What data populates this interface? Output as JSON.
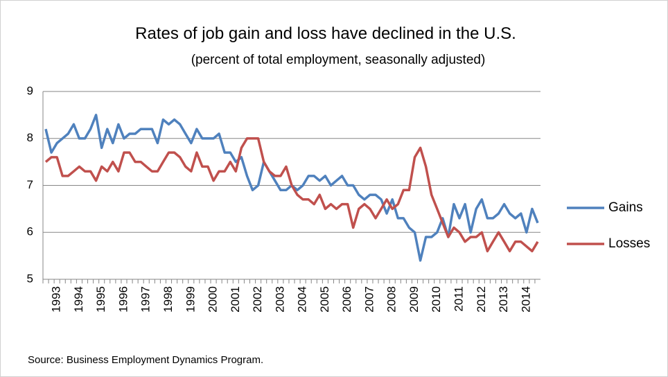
{
  "chart_data": {
    "type": "line",
    "title": "Rates of job gain and loss have declined in the U.S.",
    "subtitle": "(percent of total employment, seasonally adjusted)",
    "source": "Source: Business Employment Dynamics Program.",
    "categories": [
      null,
      null,
      "1993",
      null,
      null,
      null,
      "1994",
      null,
      null,
      null,
      "1995",
      null,
      null,
      null,
      "1996",
      null,
      null,
      null,
      "1997",
      null,
      null,
      null,
      "1998",
      null,
      null,
      null,
      "1999",
      null,
      null,
      null,
      "2000",
      null,
      null,
      null,
      "2001",
      null,
      null,
      null,
      "2002",
      null,
      null,
      null,
      "2003",
      null,
      null,
      null,
      "2004",
      null,
      null,
      null,
      "2005",
      null,
      null,
      null,
      "2006",
      null,
      null,
      null,
      "2007",
      null,
      null,
      null,
      "2008",
      null,
      null,
      null,
      "2009",
      null,
      null,
      null,
      "2010",
      null,
      null,
      null,
      "2011",
      null,
      null,
      null,
      "2012",
      null,
      null,
      null,
      "2013",
      null,
      null,
      null,
      "2014",
      null,
      null
    ],
    "series": [
      {
        "name": "Gains",
        "color": "#4f81bd",
        "values": [
          8.2,
          7.7,
          7.9,
          8.0,
          8.1,
          8.3,
          8.0,
          8.0,
          8.2,
          8.5,
          7.8,
          8.2,
          7.9,
          8.3,
          8.0,
          8.1,
          8.1,
          8.2,
          8.2,
          8.2,
          7.9,
          8.4,
          8.3,
          8.4,
          8.3,
          8.1,
          7.9,
          8.2,
          8.0,
          8.0,
          8.0,
          8.1,
          7.7,
          7.7,
          7.5,
          7.6,
          7.2,
          6.9,
          7.0,
          7.5,
          7.3,
          7.1,
          6.9,
          6.9,
          7.0,
          6.9,
          7.0,
          7.2,
          7.2,
          7.1,
          7.2,
          7.0,
          7.1,
          7.2,
          7.0,
          7.0,
          6.8,
          6.7,
          6.8,
          6.8,
          6.7,
          6.4,
          6.7,
          6.3,
          6.3,
          6.1,
          6.0,
          5.4,
          5.9,
          5.9,
          6.0,
          6.3,
          5.9,
          6.6,
          6.3,
          6.6,
          6.0,
          6.5,
          6.7,
          6.3,
          6.3,
          6.4,
          6.6,
          6.4,
          6.3,
          6.4,
          6.0,
          6.5,
          6.2
        ]
      },
      {
        "name": "Losses",
        "color": "#c0504d",
        "values": [
          7.5,
          7.6,
          7.6,
          7.2,
          7.2,
          7.3,
          7.4,
          7.3,
          7.3,
          7.1,
          7.4,
          7.3,
          7.5,
          7.3,
          7.7,
          7.7,
          7.5,
          7.5,
          7.4,
          7.3,
          7.3,
          7.5,
          7.7,
          7.7,
          7.6,
          7.4,
          7.3,
          7.7,
          7.4,
          7.4,
          7.1,
          7.3,
          7.3,
          7.5,
          7.3,
          7.8,
          8.0,
          8.0,
          8.0,
          7.5,
          7.3,
          7.2,
          7.2,
          7.4,
          7.0,
          6.8,
          6.7,
          6.7,
          6.6,
          6.8,
          6.5,
          6.6,
          6.5,
          6.6,
          6.6,
          6.1,
          6.5,
          6.6,
          6.5,
          6.3,
          6.5,
          6.7,
          6.5,
          6.6,
          6.9,
          6.9,
          7.6,
          7.8,
          7.4,
          6.8,
          6.5,
          6.2,
          5.9,
          6.1,
          6.0,
          5.8,
          5.9,
          5.9,
          6.0,
          5.6,
          5.8,
          6.0,
          5.8,
          5.6,
          5.8,
          5.8,
          5.7,
          5.6,
          5.8
        ]
      }
    ],
    "ylim": [
      5,
      9
    ],
    "yticks": [
      5,
      6,
      7,
      8,
      9
    ],
    "grid": true,
    "legend": "right"
  }
}
